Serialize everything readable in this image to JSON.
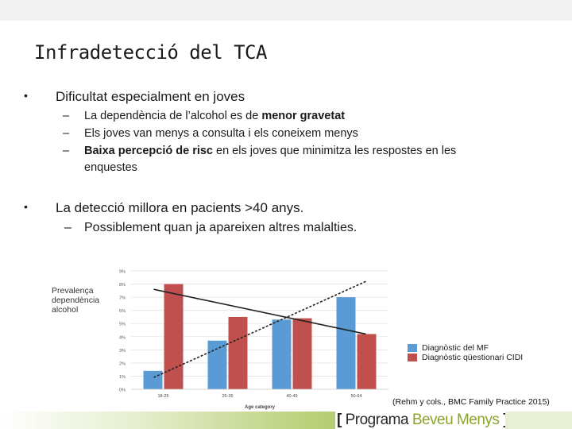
{
  "slide": {
    "title": "Infradetecció del TCA",
    "bullet1": "Dificultat especialment en joves",
    "sub1_pre": "La dependència de l’alcohol es de ",
    "sub1_bold": "menor gravetat",
    "sub2": "Els joves van menys a consulta i els coneixem menys",
    "sub3_bold": "Baixa percepció de risc",
    "sub3_rest": " en els joves que minimitza les respostes en les",
    "sub3_line2": "enquestes",
    "bullet2": "La detecció millora en pacients >40 anys.",
    "bullet2_sub": "Possiblement quan ja apareixen altres malalties.",
    "bullet_glyph": "•",
    "dash_glyph": "–",
    "chart_side_label_1": "Prevalença",
    "chart_side_label_2": "dependència",
    "chart_side_label_3": "alcohol",
    "legend_1": "Diagnòstic del MF",
    "legend_2": "Diagnòstic qüestionari CIDI",
    "citation": "(Rehm y cols., BMC Family Practice 2015)",
    "footer_bracket_open": "[",
    "footer_word1": "Programa",
    "footer_word2": "Beveu Menys",
    "footer_bracket_close": "]"
  },
  "colors": {
    "series_mf": "#5b9bd5",
    "series_cidi": "#c0504d",
    "trend_line": "#222222",
    "accent_green": "#8aa42e"
  },
  "chart_data": {
    "type": "bar",
    "categories": [
      "18-25",
      "26-35",
      "40-49",
      "50-64"
    ],
    "series": [
      {
        "name": "Diagnòstic del MF",
        "values": [
          1.4,
          3.7,
          5.3,
          7.0
        ]
      },
      {
        "name": "Diagnòstic qüestionari CIDI",
        "values": [
          8.0,
          5.5,
          5.4,
          4.2
        ]
      }
    ],
    "trend_lines": [
      {
        "series": "Diagnòstic qüestionari CIDI",
        "from": 7.6,
        "to": 4.2,
        "style": "solid"
      },
      {
        "series": "Diagnòstic del MF",
        "from": 0.9,
        "to": 8.2,
        "style": "dashed"
      }
    ],
    "xlabel": "Age category",
    "ylabel": "",
    "ylim": [
      0,
      9
    ],
    "yticks": [
      "0%",
      "1%",
      "2%",
      "3%",
      "4%",
      "5%",
      "6%",
      "7%",
      "8%",
      "9%"
    ],
    "grid": true
  }
}
